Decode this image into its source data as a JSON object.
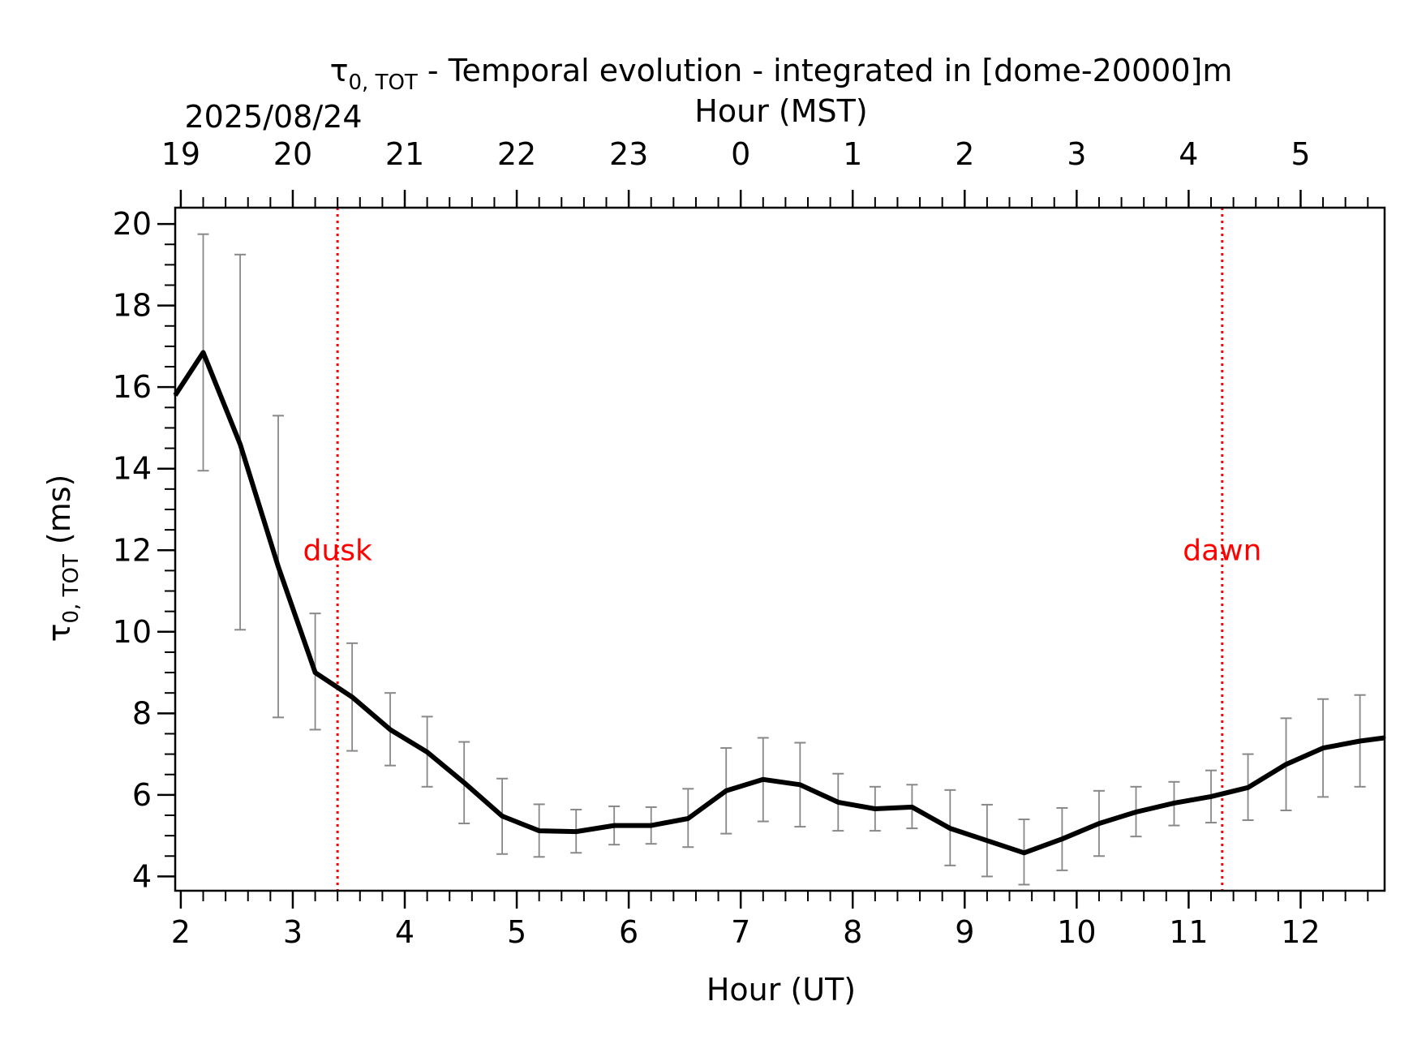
{
  "chart_data": {
    "type": "line",
    "title": {
      "tau": "τ",
      "sub": "0, TOT",
      "rest": " - Temporal evolution - integrated in [dome-20000]m"
    },
    "date_label": "2025/08/24",
    "xlabel_top": "Hour (MST)",
    "xlabel": "Hour (UT)",
    "ylabel": {
      "tau": "τ",
      "sub": "0, TOT",
      "rest": " (ms)"
    },
    "xlim": [
      1.95,
      12.75
    ],
    "ylim": [
      3.65,
      20.4
    ],
    "x_ticks": [
      2,
      3,
      4,
      5,
      6,
      7,
      8,
      9,
      10,
      11,
      12
    ],
    "x_tick_labels": [
      "2",
      "3",
      "4",
      "5",
      "6",
      "7",
      "8",
      "9",
      "10",
      "11",
      "12"
    ],
    "x_minor_step": 0.2,
    "x_top_ticks": [
      2,
      3,
      4,
      5,
      6,
      7,
      8,
      9,
      10,
      11,
      12
    ],
    "x_top_tick_labels": [
      "19",
      "20",
      "21",
      "22",
      "23",
      "0",
      "1",
      "2",
      "3",
      "4",
      "5"
    ],
    "y_ticks": [
      4,
      6,
      8,
      10,
      12,
      14,
      16,
      18,
      20
    ],
    "y_tick_labels": [
      "4",
      "6",
      "8",
      "10",
      "12",
      "14",
      "16",
      "18",
      "20"
    ],
    "y_minor_step": 0.5,
    "series": [
      {
        "color": "#000000",
        "x": [
          1.95,
          2.2,
          2.53,
          2.87,
          3.2,
          3.53,
          3.87,
          4.2,
          4.53,
          4.87,
          5.2,
          5.53,
          5.87,
          6.2,
          6.53,
          6.87,
          7.2,
          7.53,
          7.87,
          8.2,
          8.53,
          8.87,
          9.2,
          9.53,
          9.87,
          10.2,
          10.53,
          10.87,
          11.2,
          11.53,
          11.87,
          12.2,
          12.53,
          12.75
        ],
        "y": [
          15.8,
          16.85,
          14.6,
          11.6,
          9.0,
          8.4,
          7.6,
          7.05,
          6.3,
          5.48,
          5.12,
          5.1,
          5.25,
          5.25,
          5.42,
          6.1,
          6.38,
          6.25,
          5.82,
          5.66,
          5.7,
          5.18,
          4.88,
          4.58,
          4.92,
          5.3,
          5.58,
          5.8,
          5.96,
          6.18,
          6.75,
          7.15,
          7.32,
          7.4
        ]
      }
    ],
    "error_bars": {
      "color": "#888888",
      "x": [
        2.2,
        2.53,
        2.87,
        3.2,
        3.53,
        3.87,
        4.2,
        4.53,
        4.87,
        5.2,
        5.53,
        5.87,
        6.2,
        6.53,
        6.87,
        7.2,
        7.53,
        7.87,
        8.2,
        8.53,
        8.87,
        9.2,
        9.53,
        9.87,
        10.2,
        10.53,
        10.87,
        11.2,
        11.53,
        11.87,
        12.2,
        12.53
      ],
      "low": [
        13.95,
        10.05,
        7.9,
        7.6,
        7.08,
        6.72,
        6.2,
        5.3,
        4.55,
        4.48,
        4.58,
        4.78,
        4.8,
        4.72,
        5.05,
        5.35,
        5.22,
        5.12,
        5.12,
        5.18,
        4.27,
        4.0,
        3.8,
        4.15,
        4.5,
        4.98,
        5.25,
        5.32,
        5.38,
        5.62,
        5.95,
        6.2
      ],
      "high": [
        19.75,
        19.25,
        15.3,
        10.45,
        9.72,
        8.5,
        7.92,
        7.3,
        6.4,
        5.77,
        5.64,
        5.72,
        5.7,
        6.15,
        7.15,
        7.4,
        7.28,
        6.52,
        6.2,
        6.25,
        6.12,
        5.76,
        5.4,
        5.68,
        6.1,
        6.2,
        6.32,
        6.6,
        7.0,
        7.88,
        8.35,
        8.45
      ]
    },
    "annotations": [
      {
        "text": "dusk",
        "x": 3.4,
        "color": "#ff0000",
        "y": 12.0
      },
      {
        "text": "dawn",
        "x": 11.3,
        "color": "#ff0000",
        "y": 12.0
      }
    ],
    "grid": false,
    "legend": "none"
  }
}
